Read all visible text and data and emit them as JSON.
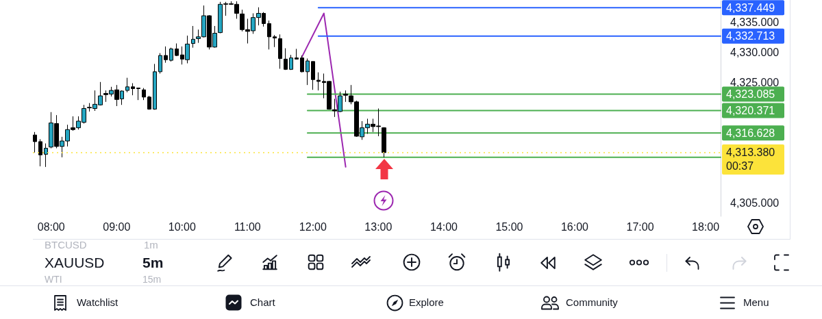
{
  "chart_data": [
    {
      "type": "candlestick",
      "x": [
        7.75,
        7.833,
        7.917,
        8,
        8.083,
        8.167,
        8.25,
        8.333,
        8.417,
        8.5,
        8.583,
        8.667,
        8.75,
        8.833,
        8.917,
        9,
        9.083,
        9.167,
        9.25,
        9.333,
        9.417,
        9.5,
        9.583,
        9.667,
        9.75,
        9.833,
        9.917,
        10,
        10.083,
        10.167,
        10.25,
        10.333,
        10.417,
        10.5,
        10.583,
        10.667,
        10.75,
        10.833,
        10.917,
        11,
        11.083,
        11.167,
        11.25,
        11.333,
        11.417,
        11.5,
        11.583,
        11.667,
        11.75,
        11.833,
        11.917,
        12,
        12.083,
        12.167,
        12.25,
        12.333,
        12.417,
        12.5,
        12.583,
        12.667,
        12.75,
        12.833,
        12.917,
        13,
        13.083
      ],
      "ohlc": [
        [
          4316.3,
          4316.8,
          4313.4,
          4315.2
        ],
        [
          4315.2,
          4315.6,
          4311.1,
          4313.0
        ],
        [
          4313.1,
          4314.9,
          4311.0,
          4314.1
        ],
        [
          4314.3,
          4320.1,
          4314.1,
          4318.3
        ],
        [
          4318.2,
          4319.6,
          4314.1,
          4314.4
        ],
        [
          4314.4,
          4316.0,
          4312.6,
          4315.3
        ],
        [
          4315.3,
          4318.0,
          4314.4,
          4317.2
        ],
        [
          4317.5,
          4319.4,
          4317.0,
          4317.2
        ],
        [
          4317.5,
          4319.4,
          4317.2,
          4318.6
        ],
        [
          4318.4,
          4321.3,
          4318.2,
          4320.7
        ],
        [
          4320.9,
          4321.6,
          4320.2,
          4320.8
        ],
        [
          4320.7,
          4323.7,
          4320.3,
          4321.4
        ],
        [
          4321.3,
          4325.1,
          4321.2,
          4322.8
        ],
        [
          4323.2,
          4323.7,
          4321.8,
          4323.0
        ],
        [
          4323.1,
          4324.3,
          4322.7,
          4323.7
        ],
        [
          4323.8,
          4324.6,
          4321.1,
          4322.2
        ],
        [
          4322.3,
          4323.7,
          4321.3,
          4323.6
        ],
        [
          4323.7,
          4325.8,
          4323.4,
          4324.3
        ],
        [
          4324.3,
          4324.9,
          4322.9,
          4324.0
        ],
        [
          4324.1,
          4324.1,
          4322.1,
          4324.0
        ],
        [
          4323.8,
          4324.1,
          4322.1,
          4322.6
        ],
        [
          4322.6,
          4322.8,
          4320.5,
          4320.6
        ],
        [
          4320.6,
          4328.1,
          4320.5,
          4326.8
        ],
        [
          4326.8,
          4329.9,
          4326.5,
          4329.5
        ],
        [
          4329.5,
          4331.0,
          4328.3,
          4328.8
        ],
        [
          4328.7,
          4330.8,
          4328.5,
          4330.6
        ],
        [
          4330.6,
          4331.5,
          4329.4,
          4329.5
        ],
        [
          4329.6,
          4331.0,
          4328.0,
          4328.9
        ],
        [
          4328.8,
          4332.8,
          4328.2,
          4331.4
        ],
        [
          4331.5,
          4334.4,
          4330.8,
          4332.2
        ],
        [
          4332.3,
          4333.8,
          4331.6,
          4332.6
        ],
        [
          4332.6,
          4337.8,
          4332.5,
          4336.1
        ],
        [
          4336.1,
          4336.2,
          4330.5,
          4330.9
        ],
        [
          4330.9,
          4334.4,
          4330.8,
          4333.2
        ],
        [
          4333.3,
          4338.4,
          4333.2,
          4338.0
        ],
        [
          4338.1,
          4338.4,
          4336.1,
          4338.0
        ],
        [
          4338.1,
          4338.5,
          4337.9,
          4338.0
        ],
        [
          4338.0,
          4338.5,
          4335.6,
          4336.5
        ],
        [
          4336.4,
          4337.1,
          4333.5,
          4333.8
        ],
        [
          4333.8,
          4335.6,
          4331.5,
          4333.5
        ],
        [
          4333.6,
          4336.5,
          4333.1,
          4335.8
        ],
        [
          4335.8,
          4337.5,
          4334.5,
          4336.5
        ],
        [
          4336.5,
          4336.7,
          4334.3,
          4334.8
        ],
        [
          4334.8,
          4335.3,
          4330.5,
          4332.6
        ],
        [
          4332.6,
          4332.9,
          4330.9,
          4332.4
        ],
        [
          4332.3,
          4333.0,
          4327.3,
          4329.0
        ],
        [
          4328.9,
          4330.7,
          4327.1,
          4327.2
        ],
        [
          4327.2,
          4329.6,
          4327.1,
          4329.1
        ],
        [
          4329.1,
          4330.6,
          4328.9,
          4328.9
        ],
        [
          4329.1,
          4329.5,
          4326.7,
          4326.8
        ],
        [
          4326.8,
          4329.0,
          4324.6,
          4328.6
        ],
        [
          4328.5,
          4328.5,
          4323.8,
          4325.5
        ],
        [
          4325.4,
          4326.7,
          4323.7,
          4325.2
        ],
        [
          4325.2,
          4326.5,
          4322.4,
          4325.0
        ],
        [
          4325.2,
          4325.3,
          4320.5,
          4320.6
        ],
        [
          4320.5,
          4322.3,
          4319.3,
          4320.3
        ],
        [
          4320.2,
          4323.5,
          4320.1,
          4322.8
        ],
        [
          4323.1,
          4323.7,
          4321.8,
          4322.9
        ],
        [
          4322.8,
          4324.6,
          4321.4,
          4321.8
        ],
        [
          4321.8,
          4322.0,
          4316.0,
          4316.1
        ],
        [
          4316.0,
          4318.6,
          4315.5,
          4317.5
        ],
        [
          4317.5,
          4319.0,
          4316.5,
          4318.1
        ],
        [
          4318.1,
          4319.0,
          4316.8,
          4317.7
        ],
        [
          4317.8,
          4320.7,
          4316.1,
          4317.7
        ],
        [
          4317.5,
          4317.6,
          4312.6,
          4313.38
        ]
      ],
      "colors": [
        "#000000",
        "#000000",
        "#25a6c2",
        "#25a6c2",
        "#000000",
        "#25a6c2",
        "#25a6c2",
        "#000000",
        "#25a6c2",
        "#25a6c2",
        "#000000",
        "#25a6c2",
        "#25a6c2",
        "#000000",
        "#25a6c2",
        "#000000",
        "#25a6c2",
        "#25a6c2",
        "#000000",
        "#000000",
        "#000000",
        "#000000",
        "#25a6c2",
        "#25a6c2",
        "#000000",
        "#25a6c2",
        "#000000",
        "#000000",
        "#25a6c2",
        "#25a6c2",
        "#25a6c2",
        "#25a6c2",
        "#000000",
        "#25a6c2",
        "#25a6c2",
        "#000000",
        "#000000",
        "#000000",
        "#000000",
        "#000000",
        "#25a6c2",
        "#25a6c2",
        "#000000",
        "#000000",
        "#000000",
        "#000000",
        "#000000",
        "#25a6c2",
        "#000000",
        "#000000",
        "#25a6c2",
        "#000000",
        "#000000",
        "#000000",
        "#000000",
        "#000000",
        "#25a6c2",
        "#000000",
        "#000000",
        "#000000",
        "#25a6c2",
        "#25a6c2",
        "#000000",
        "#000000",
        "#000000"
      ],
      "series": [
        {
          "type": "line",
          "x": [
            11.833,
            12.167,
            12.5
          ],
          "values": [
            4329.3,
            4336.5,
            4311.0
          ],
          "color": "#9c27b0"
        },
        {
          "type": "line",
          "x": [
            12.083,
            18.23
          ],
          "values": [
            4337.449,
            4337.449
          ],
          "color": "#2962ff",
          "value_labels": [
            null,
            "4,337.449"
          ]
        },
        {
          "type": "line",
          "x": [
            12.083,
            18.23
          ],
          "values": [
            4332.713,
            4332.713
          ],
          "color": "#2962ff",
          "value_labels": [
            null,
            "4,332.713"
          ]
        },
        {
          "type": "line",
          "x": [
            11.917,
            18.23
          ],
          "values": [
            4323.085,
            4323.085
          ],
          "color": "#4caf50",
          "value_labels": [
            null,
            "4,323.085"
          ]
        },
        {
          "type": "line",
          "x": [
            11.917,
            18.23
          ],
          "values": [
            4320.371,
            4320.371
          ],
          "color": "#4caf50",
          "value_labels": [
            null,
            "4,320.371"
          ]
        },
        {
          "type": "line",
          "x": [
            11.917,
            18.23
          ],
          "values": [
            4316.628,
            4316.628
          ],
          "color": "#4caf50",
          "value_labels": [
            null,
            "4,316.628"
          ]
        },
        {
          "type": "line",
          "x": [
            11.917,
            18.23
          ],
          "values": [
            4312.6,
            4312.6
          ],
          "color": "#4caf50"
        }
      ],
      "ref_lines": [
        {
          "axis": "y",
          "value": 4313.38,
          "label": "4,313.380\n00:37",
          "color": "#fce33a",
          "line_style": "dotted"
        }
      ],
      "xlim": [
        7.72,
        18.23
      ],
      "xticks": [
        {
          "value": 8,
          "label": "08:00"
        },
        {
          "value": 9,
          "label": "09:00"
        },
        {
          "value": 10,
          "label": "10:00"
        },
        {
          "value": 11,
          "label": "11:00"
        },
        {
          "value": 12,
          "label": "12:00"
        },
        {
          "value": 13,
          "label": "13:00"
        },
        {
          "value": 14,
          "label": "14:00"
        },
        {
          "value": 15,
          "label": "15:00"
        },
        {
          "value": 16,
          "label": "16:00"
        },
        {
          "value": 17,
          "label": "17:00"
        },
        {
          "value": 18,
          "label": "18:00"
        }
      ],
      "ylim": [
        4302.8,
        4338.6
      ],
      "yticks": [
        {
          "value": 4305,
          "label": "4,305.000"
        },
        {
          "value": 4325,
          "label": "4,325.000"
        },
        {
          "value": 4330,
          "label": "4,330.000"
        },
        {
          "value": 4335,
          "label": "4,335.000"
        }
      ]
    },
    {
      "type": "other",
      "annotations": [
        "BTCUSD",
        "1m",
        "XAUUSD",
        "5m",
        "WTI",
        "15m",
        "Watchlist",
        "Chart",
        "Explore",
        "Community",
        "Menu"
      ]
    }
  ]
}
